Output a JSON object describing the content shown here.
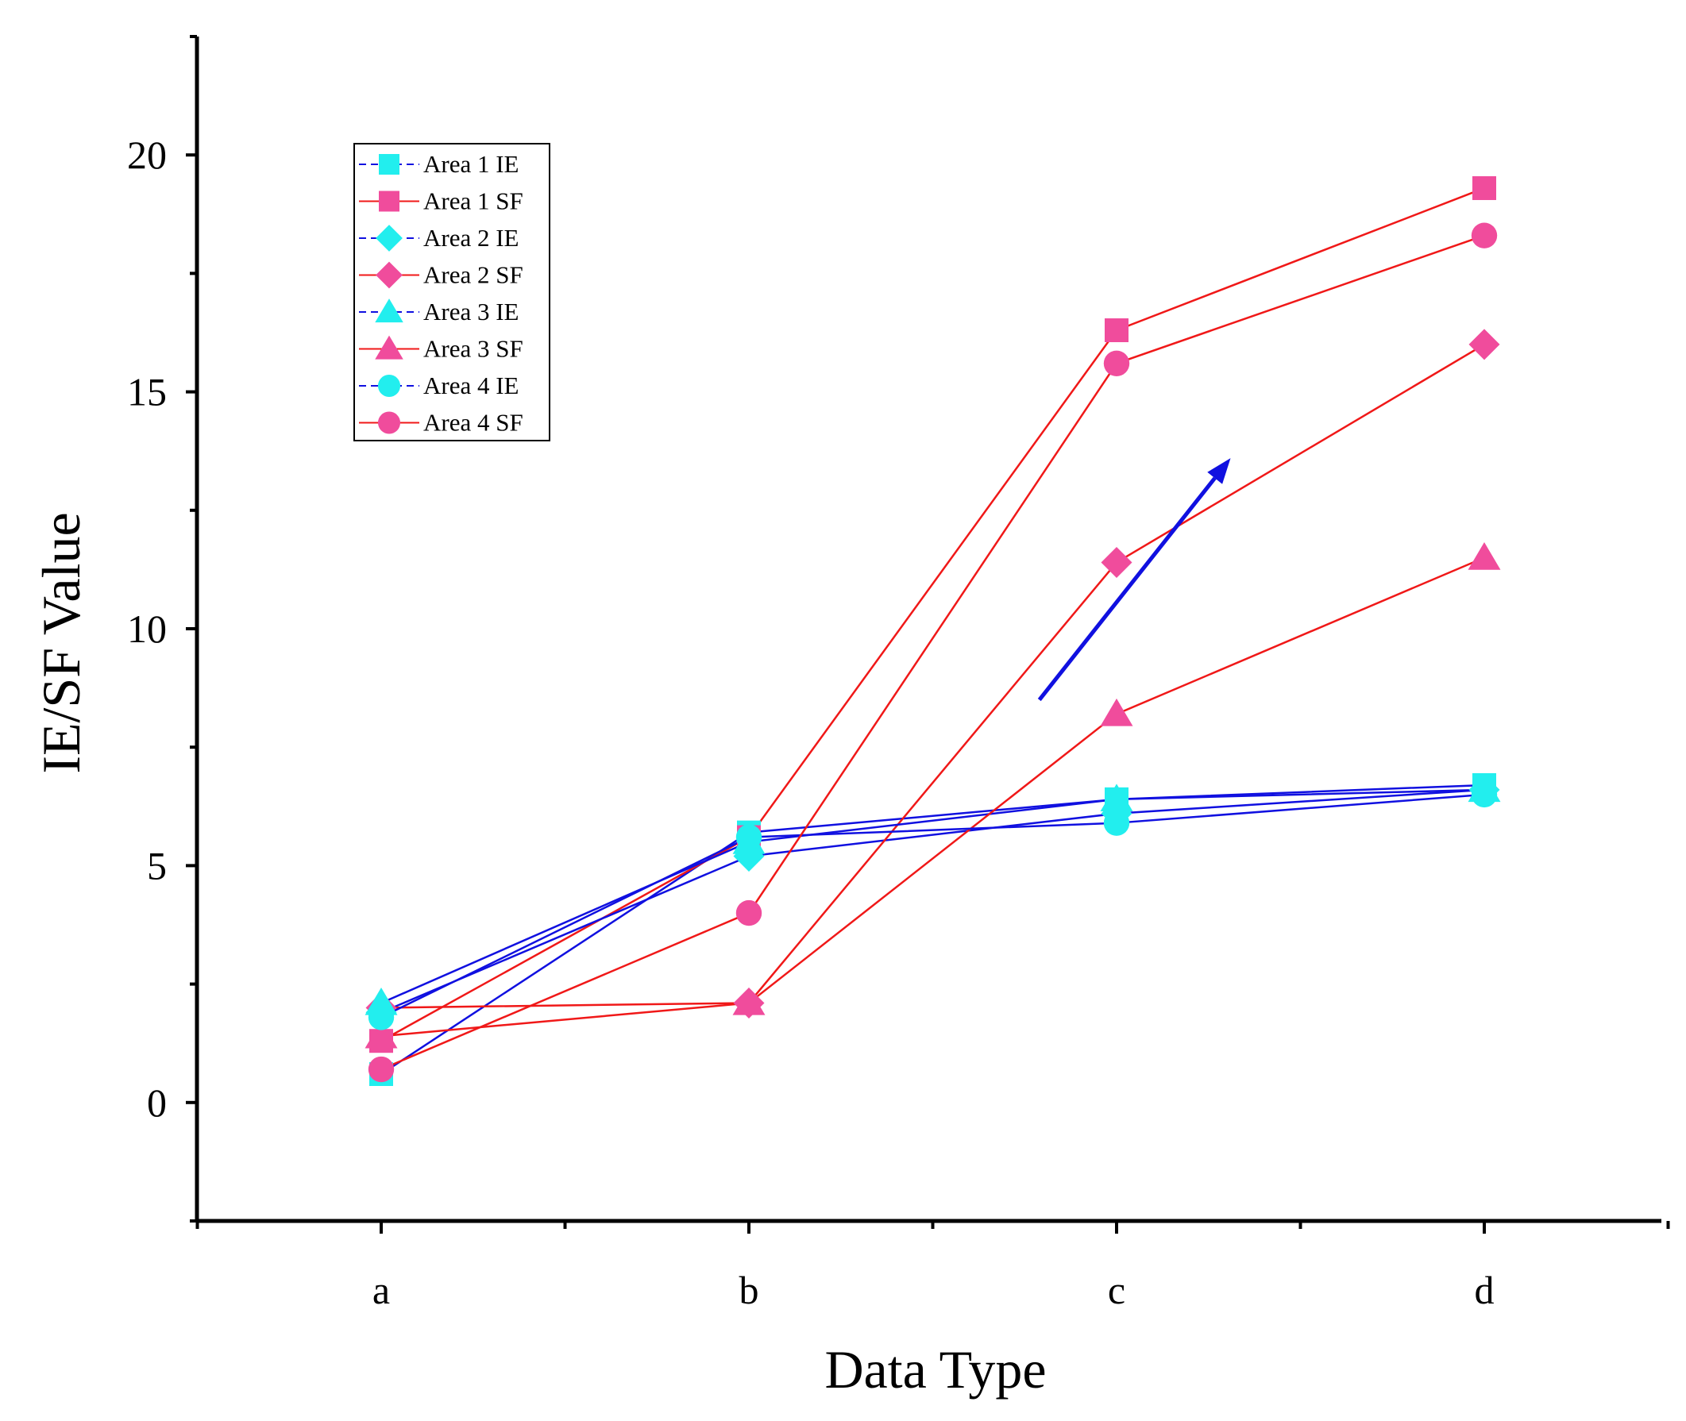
{
  "chart_data": {
    "type": "line",
    "title": "",
    "xlabel": "Data Type",
    "ylabel": "IE/SF Value",
    "categories": [
      "a",
      "b",
      "c",
      "d"
    ],
    "ylim": [
      -2.5,
      22.5
    ],
    "yticks": [
      0,
      5,
      10,
      15,
      20
    ],
    "grid": false,
    "legend_position": "top-left",
    "colors": {
      "ie_line": "#1010e0",
      "sf_line": "#f01818",
      "ie_marker": "#22eeee",
      "sf_marker": "#f04c9c",
      "arrow": "#1010e0"
    },
    "series": [
      {
        "name": "Area 1 IE",
        "values": [
          0.6,
          5.7,
          6.4,
          6.7
        ],
        "marker": "square",
        "group": "IE"
      },
      {
        "name": "Area 1 SF",
        "values": [
          1.3,
          5.6,
          16.3,
          19.3
        ],
        "marker": "square",
        "group": "SF"
      },
      {
        "name": "Area 2 IE",
        "values": [
          1.9,
          5.2,
          6.1,
          6.6
        ],
        "marker": "diamond",
        "group": "IE"
      },
      {
        "name": "Area 2 SF",
        "values": [
          2.0,
          2.1,
          11.4,
          16.0
        ],
        "marker": "diamond",
        "group": "SF"
      },
      {
        "name": "Area 3 IE",
        "values": [
          2.1,
          5.5,
          6.4,
          6.6
        ],
        "marker": "triangle",
        "group": "IE"
      },
      {
        "name": "Area 3 SF",
        "values": [
          1.4,
          2.1,
          8.2,
          11.5
        ],
        "marker": "triangle",
        "group": "SF"
      },
      {
        "name": "Area 4 IE",
        "values": [
          1.8,
          5.6,
          5.9,
          6.5
        ],
        "marker": "circle",
        "group": "IE"
      },
      {
        "name": "Area 4 SF",
        "values": [
          0.7,
          4.0,
          15.6,
          18.3
        ],
        "marker": "circle",
        "group": "SF"
      }
    ],
    "annotation": {
      "type": "arrow",
      "from": {
        "x": 1.79,
        "y": 8.5
      },
      "to": {
        "x": 2.31,
        "y": 13.6
      }
    }
  }
}
